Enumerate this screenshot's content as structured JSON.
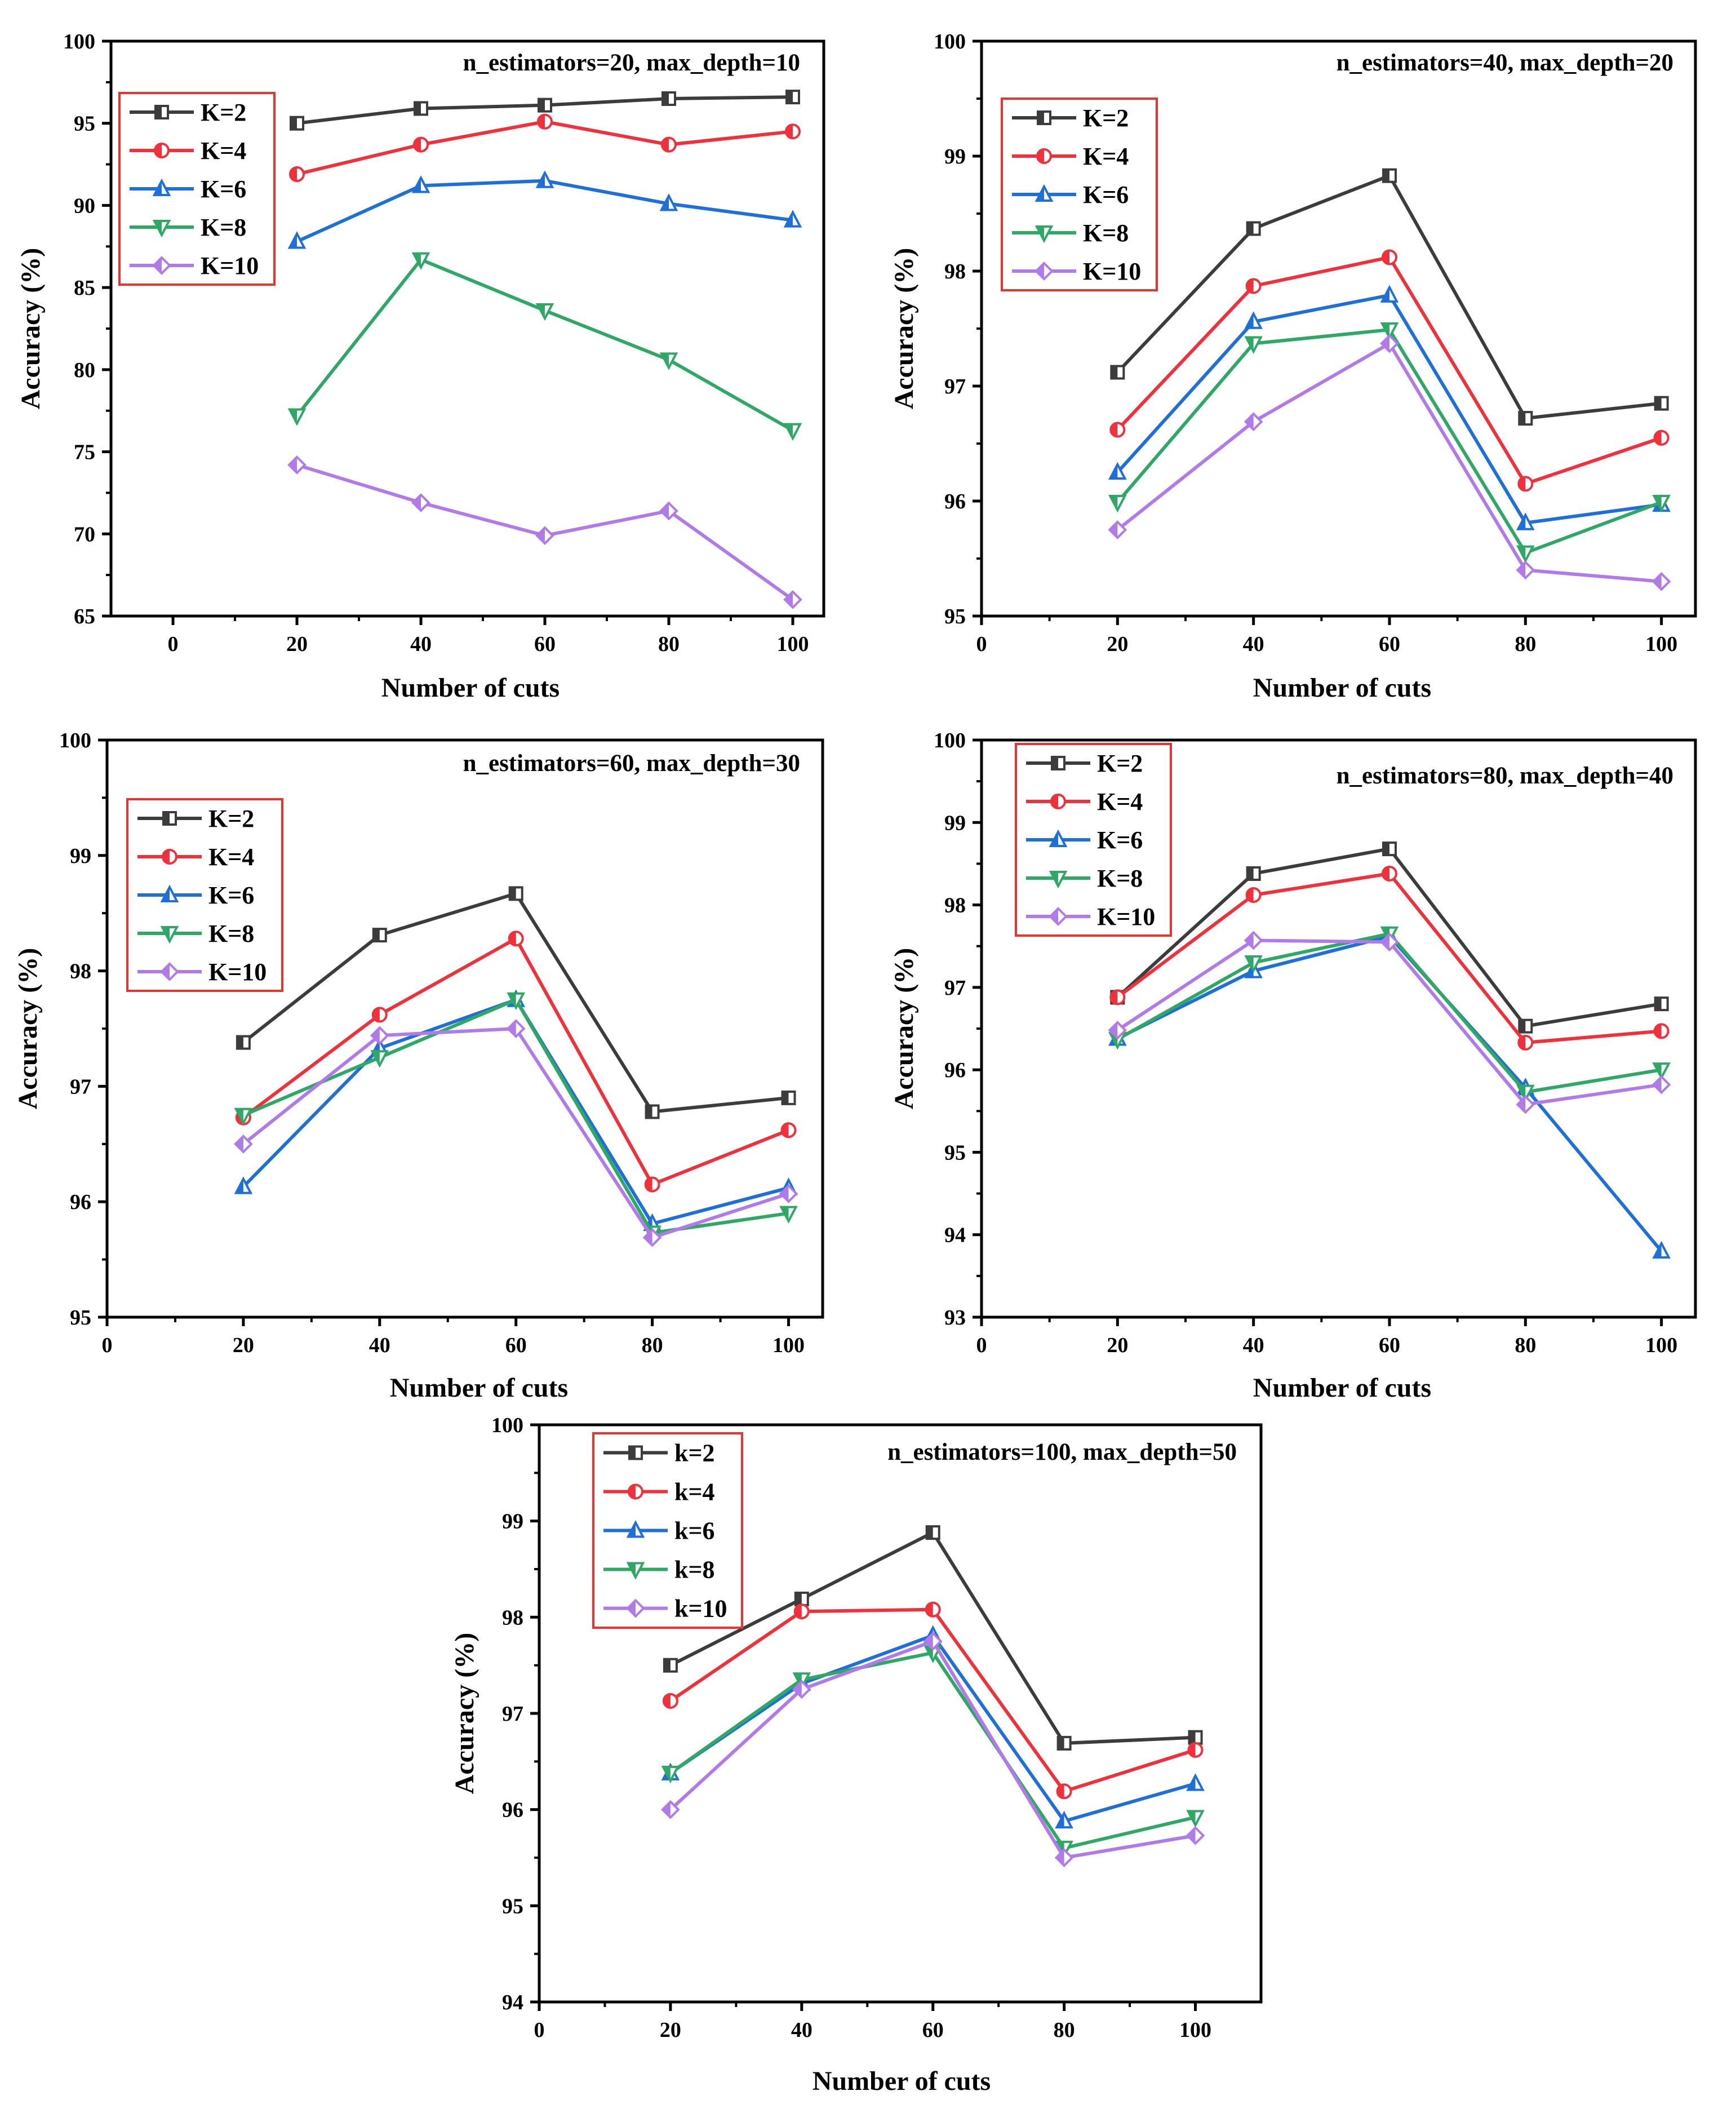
{
  "figure": {
    "colors": {
      "K=2": "#3c3c3c",
      "K=4": "#f0303a",
      "K=6": "#1e6fd8",
      "K=8": "#2fa866",
      "K=10": "#b07ae8",
      "legend_border": "#e8332f",
      "axis": "#000000"
    }
  },
  "chart_data": [
    {
      "type": "line",
      "title": "n_estimators=20, max_depth=10",
      "xlabel": "Number of cuts",
      "ylabel": "Accuracy (%)",
      "xlim": [
        -10,
        105
      ],
      "ylim": [
        65,
        100
      ],
      "xticks": [
        0,
        20,
        40,
        60,
        80,
        100
      ],
      "yticks": [
        65,
        70,
        75,
        80,
        85,
        90,
        95,
        100
      ],
      "legend_position": "top-left",
      "x": [
        20,
        40,
        60,
        80,
        100
      ],
      "series": [
        {
          "name": "K=2",
          "marker": "square",
          "values": [
            95.0,
            95.9,
            96.1,
            96.5,
            96.6
          ]
        },
        {
          "name": "K=4",
          "marker": "circle",
          "values": [
            91.9,
            93.7,
            95.1,
            93.7,
            94.5
          ]
        },
        {
          "name": "K=6",
          "marker": "triangle-up",
          "values": [
            87.8,
            91.2,
            91.5,
            90.1,
            89.1
          ]
        },
        {
          "name": "K=8",
          "marker": "triangle-down",
          "values": [
            77.2,
            86.7,
            83.6,
            80.6,
            76.3
          ]
        },
        {
          "name": "K=10",
          "marker": "diamond",
          "values": [
            74.2,
            71.9,
            69.9,
            71.4,
            66.0
          ]
        }
      ]
    },
    {
      "type": "line",
      "title": "n_estimators=40, max_depth=20",
      "xlabel": "Number of cuts",
      "ylabel": "Accuracy (%)",
      "xlim": [
        0,
        105
      ],
      "ylim": [
        95,
        100
      ],
      "xticks": [
        0,
        20,
        40,
        60,
        80,
        100
      ],
      "yticks": [
        95,
        96,
        97,
        98,
        99,
        100
      ],
      "legend_position": "top-left",
      "x": [
        20,
        40,
        60,
        80,
        100
      ],
      "series": [
        {
          "name": "K=2",
          "marker": "square",
          "values": [
            97.12,
            98.37,
            98.83,
            96.72,
            96.85
          ]
        },
        {
          "name": "K=4",
          "marker": "circle",
          "values": [
            96.62,
            97.87,
            98.12,
            96.15,
            96.55
          ]
        },
        {
          "name": "K=6",
          "marker": "triangle-up",
          "values": [
            96.25,
            97.56,
            97.79,
            95.81,
            95.97
          ]
        },
        {
          "name": "K=8",
          "marker": "triangle-down",
          "values": [
            95.99,
            97.37,
            97.49,
            95.55,
            95.99
          ]
        },
        {
          "name": "K=10",
          "marker": "diamond",
          "values": [
            95.75,
            96.69,
            97.37,
            95.4,
            95.3
          ]
        }
      ]
    },
    {
      "type": "line",
      "title": "n_estimators=60, max_depth=30",
      "xlabel": "Number of cuts",
      "ylabel": "Accuracy (%)",
      "xlim": [
        0,
        105
      ],
      "ylim": [
        95,
        100
      ],
      "xticks": [
        0,
        20,
        40,
        60,
        80,
        100
      ],
      "yticks": [
        95,
        96,
        97,
        98,
        99,
        100
      ],
      "legend_position": "top-left",
      "x": [
        20,
        40,
        60,
        80,
        100
      ],
      "series": [
        {
          "name": "K=2",
          "marker": "square",
          "values": [
            97.38,
            98.31,
            98.67,
            96.78,
            96.9
          ]
        },
        {
          "name": "K=4",
          "marker": "circle",
          "values": [
            96.73,
            97.62,
            98.28,
            96.15,
            96.62
          ]
        },
        {
          "name": "K=6",
          "marker": "triangle-up",
          "values": [
            96.13,
            97.33,
            97.75,
            95.81,
            96.12
          ]
        },
        {
          "name": "K=8",
          "marker": "triangle-down",
          "values": [
            96.75,
            97.25,
            97.75,
            95.73,
            95.9
          ]
        },
        {
          "name": "K=10",
          "marker": "diamond",
          "values": [
            96.5,
            97.44,
            97.5,
            95.69,
            96.07
          ]
        }
      ]
    },
    {
      "type": "line",
      "title": "n_estimators=80, max_depth=40",
      "xlabel": "Number of cuts",
      "ylabel": "Accuracy (%)",
      "xlim": [
        0,
        105
      ],
      "ylim": [
        93,
        100
      ],
      "xticks": [
        0,
        20,
        40,
        60,
        80,
        100
      ],
      "yticks": [
        93,
        94,
        95,
        96,
        97,
        98,
        99,
        100
      ],
      "legend_position": "top-left",
      "x": [
        20,
        40,
        60,
        80,
        100
      ],
      "series": [
        {
          "name": "K=2",
          "marker": "square",
          "values": [
            96.88,
            98.38,
            98.68,
            96.53,
            96.8
          ]
        },
        {
          "name": "K=4",
          "marker": "circle",
          "values": [
            96.88,
            98.12,
            98.38,
            96.33,
            96.47
          ]
        },
        {
          "name": "K=6",
          "marker": "triangle-up",
          "values": [
            96.38,
            97.2,
            97.62,
            95.78,
            93.8
          ]
        },
        {
          "name": "K=8",
          "marker": "triangle-down",
          "values": [
            96.37,
            97.3,
            97.65,
            95.73,
            96.0
          ]
        },
        {
          "name": "K=10",
          "marker": "diamond",
          "values": [
            96.48,
            97.57,
            97.55,
            95.58,
            95.82
          ]
        }
      ]
    },
    {
      "type": "line",
      "title": "n_estimators=100, max_depth=50",
      "xlabel": "Number of cuts",
      "ylabel": "Accuracy (%)",
      "xlim": [
        0,
        110
      ],
      "ylim": [
        94,
        100
      ],
      "xticks": [
        0,
        20,
        40,
        60,
        80,
        100
      ],
      "yticks": [
        94,
        95,
        96,
        97,
        98,
        99,
        100
      ],
      "legend_position": "top-left",
      "x": [
        20,
        40,
        60,
        80,
        100
      ],
      "series": [
        {
          "name": "k=2",
          "marker": "square",
          "values": [
            97.5,
            98.19,
            98.88,
            96.69,
            96.75
          ]
        },
        {
          "name": "k=4",
          "marker": "circle",
          "values": [
            97.13,
            98.06,
            98.08,
            96.19,
            96.62
          ]
        },
        {
          "name": "k=6",
          "marker": "triangle-up",
          "values": [
            96.38,
            97.31,
            97.81,
            95.88,
            96.27
          ]
        },
        {
          "name": "k=8",
          "marker": "triangle-down",
          "values": [
            96.38,
            97.35,
            97.63,
            95.6,
            95.92
          ]
        },
        {
          "name": "k=10",
          "marker": "diamond",
          "values": [
            96.0,
            97.25,
            97.75,
            95.5,
            95.73
          ]
        }
      ]
    }
  ]
}
